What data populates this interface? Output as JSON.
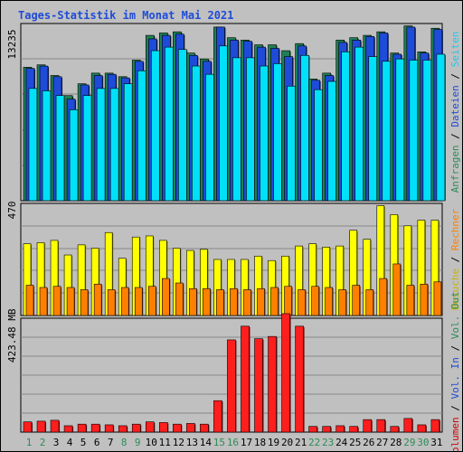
{
  "chart_data": {
    "type": "bar",
    "title": "Tages-Statistik im Monat Mai 2021",
    "categories": [
      "1",
      "2",
      "3",
      "4",
      "5",
      "6",
      "7",
      "8",
      "9",
      "10",
      "11",
      "12",
      "13",
      "14",
      "15",
      "16",
      "17",
      "18",
      "19",
      "20",
      "21",
      "22",
      "23",
      "24",
      "25",
      "26",
      "27",
      "28",
      "29",
      "30",
      "31"
    ],
    "weekend_days": [
      "1",
      "2",
      "8",
      "9",
      "15",
      "16",
      "22",
      "23",
      "29",
      "30"
    ],
    "grid": true,
    "legend_placement": "right",
    "panels": [
      {
        "id": "top",
        "y_tick_label": "13235",
        "y_tick_value": 13235,
        "ylim": [
          0,
          15000
        ],
        "legend": [
          {
            "text": "Anfragen",
            "color": "#2e8b57"
          },
          {
            "sep": true,
            "text": " / "
          },
          {
            "text": "Dateien",
            "color": "#1e4bd8"
          },
          {
            "sep": true,
            "text": " / "
          },
          {
            "text": "Seiten",
            "color": "#1ec8f0"
          }
        ],
        "series": [
          {
            "name": "Anfragen",
            "color": "#1f7f55",
            "values": [
              11300,
              11500,
              10600,
              8900,
              9900,
              10800,
              10800,
              10500,
              11900,
              14000,
              14200,
              14300,
              12500,
              12000,
              14700,
              13800,
              13600,
              13200,
              13200,
              12700,
              13300,
              10300,
              10800,
              13600,
              13800,
              14000,
              14300,
              12500,
              14800,
              12600,
              14600
            ]
          },
          {
            "name": "Dateien",
            "color": "#1e4bd8",
            "values": [
              11200,
              11400,
              10500,
              8600,
              9800,
              10600,
              10700,
              10400,
              11800,
              13700,
              14000,
              14100,
              12300,
              11800,
              14700,
              13600,
              13500,
              13000,
              12900,
              12200,
              13100,
              10200,
              10600,
              13400,
              13600,
              13900,
              14200,
              12400,
              14700,
              12500,
              14500
            ]
          },
          {
            "name": "Seiten",
            "color": "#00e0f8",
            "values": [
              9500,
              9300,
              8900,
              7700,
              8900,
              9500,
              9500,
              9900,
              11000,
              12700,
              13000,
              12800,
              11400,
              10700,
              13100,
              12100,
              12100,
              11400,
              11600,
              9700,
              12300,
              9400,
              10100,
              12600,
              13000,
              12200,
              11800,
              12000,
              11900,
              11900,
              12400
            ]
          }
        ]
      },
      {
        "id": "middle",
        "y_tick_label": "470",
        "y_tick_value": 470,
        "ylim": [
          0,
          500
        ],
        "legend": [
          {
            "text": "Besuche",
            "color": "#c8b400"
          },
          {
            "sep": true,
            "text": " / "
          },
          {
            "text": "Rechner",
            "color": "#ff8000"
          }
        ],
        "series": [
          {
            "name": "Besuche",
            "color": "#ffff00",
            "values": [
              320,
              325,
              335,
              270,
              315,
              300,
              370,
              255,
              350,
              355,
              335,
              300,
              290,
              295,
              250,
              250,
              250,
              265,
              245,
              265,
              310,
              320,
              305,
              310,
              380,
              340,
              490,
              450,
              400,
              425,
              425
            ]
          },
          {
            "name": "Rechner",
            "color": "#ff8000",
            "values": [
              135,
              125,
              130,
              125,
              115,
              140,
              115,
              125,
              125,
              130,
              165,
              145,
              120,
              120,
              115,
              120,
              115,
              120,
              125,
              130,
              115,
              130,
              125,
              115,
              135,
              115,
              165,
              230,
              135,
              140,
              150
            ]
          }
        ]
      },
      {
        "id": "bottom",
        "y_tick_label": "423.48 MB",
        "y_tick_value": 423.48,
        "ylim": [
          0,
          500
        ],
        "legend": [
          {
            "text": "Volumen",
            "color": "#d20000"
          },
          {
            "sep": true,
            "text": " / "
          },
          {
            "text": "Vol. In",
            "color": "#1e4bd8"
          },
          {
            "sep": true,
            "text": " / "
          },
          {
            "text": "Vol. Out",
            "color": "#2e8b57"
          }
        ],
        "series": [
          {
            "name": "Volumen",
            "color": "#ff1e1e",
            "values": [
              45,
              48,
              52,
              28,
              35,
              35,
              32,
              28,
              35,
              45,
              42,
              35,
              38,
              35,
              138,
              405,
              465,
              410,
              420,
              520,
              465,
              25,
              25,
              28,
              25,
              55,
              55,
              25,
              60,
              32,
              55
            ]
          }
        ]
      }
    ]
  }
}
